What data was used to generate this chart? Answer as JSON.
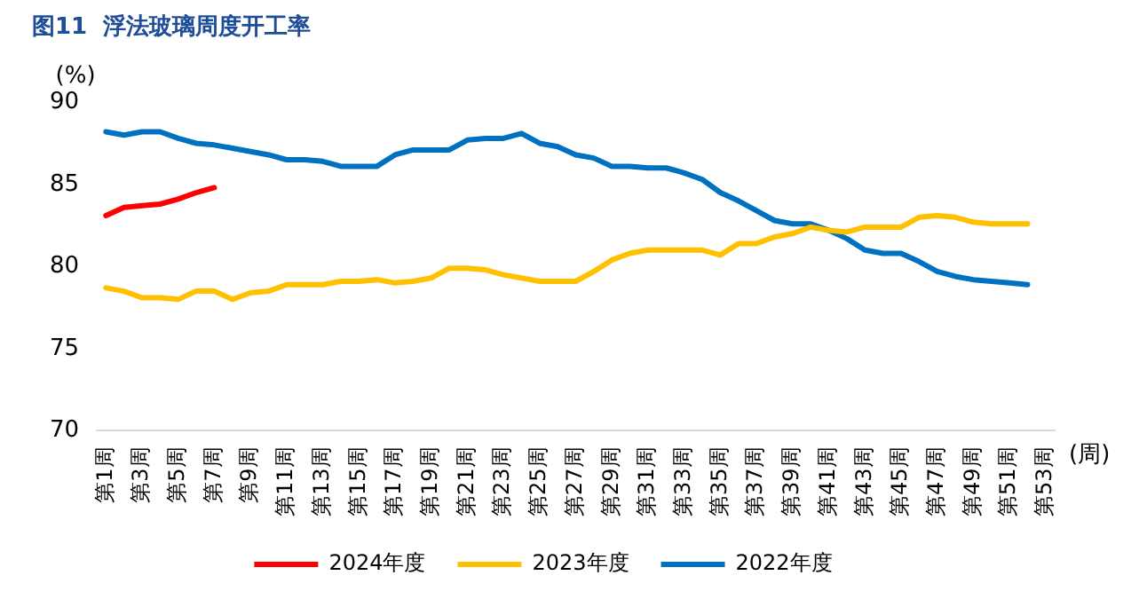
{
  "chart_data": {
    "type": "line",
    "title": "图11  浮法玻璃周度开工率",
    "ylabel": "(%)",
    "xlabel": "(周)",
    "categories": [
      "第1周",
      null,
      "第3周",
      null,
      "第5周",
      null,
      "第7周",
      null,
      "第9周",
      null,
      "第11周",
      null,
      "第13周",
      null,
      "第15周",
      null,
      "第17周",
      null,
      "第19周",
      null,
      "第21周",
      null,
      "第23周",
      null,
      "第25周",
      null,
      "第27周",
      null,
      "第29周",
      null,
      "第31周",
      null,
      "第33周",
      null,
      "第35周",
      null,
      "第37周",
      null,
      "第39周",
      null,
      "第41周",
      null,
      "第43周",
      null,
      "第45周",
      null,
      "第47周",
      null,
      "第49周",
      null,
      "第51周",
      null,
      "第53周"
    ],
    "ylim": [
      70,
      90
    ],
    "yticks": [
      70,
      75,
      80,
      85,
      90
    ],
    "grid": false,
    "legend": "bottom",
    "marker": "none",
    "line_style": "solid",
    "series": [
      {
        "name": "2024年度",
        "color": "#ff0000",
        "values": [
          83.1,
          83.6,
          83.7,
          83.8,
          84.1,
          84.5,
          84.8,
          null,
          null,
          null,
          null,
          null,
          null,
          null,
          null,
          null,
          null,
          null,
          null,
          null,
          null,
          null,
          null,
          null,
          null,
          null,
          null,
          null,
          null,
          null,
          null,
          null,
          null,
          null,
          null,
          null,
          null,
          null,
          null,
          null,
          null,
          null,
          null,
          null,
          null,
          null,
          null,
          null,
          null,
          null,
          null,
          null,
          null
        ]
      },
      {
        "name": "2023年度",
        "color": "#ffc000",
        "values": [
          78.7,
          78.5,
          78.1,
          78.1,
          78.0,
          78.5,
          78.5,
          78.0,
          78.4,
          78.5,
          78.9,
          78.9,
          78.9,
          79.1,
          79.1,
          79.2,
          79.0,
          79.1,
          79.3,
          79.9,
          79.9,
          79.8,
          79.5,
          79.3,
          79.1,
          79.1,
          79.1,
          79.7,
          80.4,
          80.8,
          81.0,
          81.0,
          81.0,
          81.0,
          80.7,
          81.4,
          81.4,
          81.8,
          82.0,
          82.4,
          82.2,
          82.1,
          82.4,
          82.4,
          82.4,
          83.0,
          83.1,
          83.0,
          82.7,
          82.6,
          82.6,
          82.6,
          null
        ]
      },
      {
        "name": "2022年度",
        "color": "#0070c0",
        "values": [
          88.2,
          88.0,
          88.2,
          88.2,
          87.8,
          87.5,
          87.4,
          87.2,
          87.0,
          86.8,
          86.5,
          86.5,
          86.4,
          86.1,
          86.1,
          86.1,
          86.8,
          87.1,
          87.1,
          87.1,
          87.7,
          87.8,
          87.8,
          88.1,
          87.5,
          87.3,
          86.8,
          86.6,
          86.1,
          86.1,
          86.0,
          86.0,
          85.7,
          85.3,
          84.5,
          84.0,
          83.4,
          82.8,
          82.6,
          82.6,
          82.2,
          81.7,
          81.0,
          80.8,
          80.8,
          80.3,
          79.7,
          79.4,
          79.2,
          79.1,
          79.0,
          78.9,
          null
        ]
      }
    ]
  }
}
